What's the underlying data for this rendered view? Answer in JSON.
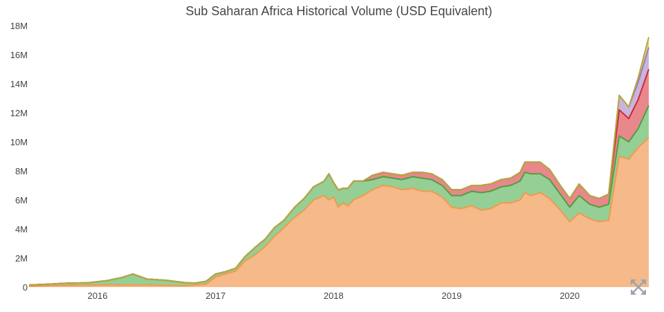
{
  "chart_data": {
    "type": "area",
    "title": "Sub Saharan Africa Historical Volume (USD Equivalent)",
    "xlabel": "",
    "ylabel": "",
    "stacked": true,
    "ylim": [
      0,
      18000000
    ],
    "xlim": [
      2015.42,
      2020.67
    ],
    "grid": false,
    "legend": "none",
    "y_tick_values": [
      0,
      2000000,
      4000000,
      6000000,
      8000000,
      10000000,
      12000000,
      14000000,
      16000000,
      18000000
    ],
    "y_tick_labels": [
      "0",
      "2M",
      "4M",
      "6M",
      "8M",
      "10M",
      "12M",
      "14M",
      "16M",
      "18M"
    ],
    "x_tick_values": [
      2016,
      2017,
      2018,
      2019,
      2020
    ],
    "x_tick_labels": [
      "2016",
      "2017",
      "2018",
      "2019",
      "2020"
    ],
    "x": [
      2015.42,
      2015.58,
      2015.75,
      2015.92,
      2016.08,
      2016.2,
      2016.3,
      2016.42,
      2016.58,
      2016.75,
      2016.83,
      2016.92,
      2017.0,
      2017.08,
      2017.17,
      2017.25,
      2017.33,
      2017.42,
      2017.5,
      2017.58,
      2017.67,
      2017.75,
      2017.83,
      2017.92,
      2017.96,
      2018.0,
      2018.04,
      2018.08,
      2018.12,
      2018.17,
      2018.25,
      2018.33,
      2018.42,
      2018.5,
      2018.58,
      2018.67,
      2018.75,
      2018.83,
      2018.92,
      2019.0,
      2019.08,
      2019.17,
      2019.25,
      2019.33,
      2019.42,
      2019.5,
      2019.58,
      2019.62,
      2019.67,
      2019.75,
      2019.83,
      2019.92,
      2020.0,
      2020.08,
      2020.17,
      2020.25,
      2020.33,
      2020.42,
      2020.5,
      2020.58,
      2020.67
    ],
    "series": [
      {
        "color": "#f5b98a",
        "line_color": "#f09a4e",
        "values": [
          50000,
          100000,
          120000,
          130000,
          150000,
          150000,
          150000,
          150000,
          120000,
          100000,
          150000,
          200000,
          700000,
          900000,
          1100000,
          1800000,
          2200000,
          2800000,
          3500000,
          4100000,
          4800000,
          5300000,
          6000000,
          6300000,
          6000000,
          6200000,
          5500000,
          5800000,
          5600000,
          6000000,
          6300000,
          6700000,
          7000000,
          6900000,
          6700000,
          6800000,
          6600000,
          6600000,
          6200000,
          5500000,
          5400000,
          5600000,
          5300000,
          5400000,
          5800000,
          5800000,
          6000000,
          6500000,
          6300000,
          6500000,
          6100000,
          5300000,
          4500000,
          5100000,
          4700000,
          4500000,
          4600000,
          9000000,
          8800000,
          9600000,
          10300000
        ]
      },
      {
        "color": "#95cf95",
        "line_color": "#4f9f3f",
        "values": [
          100000,
          100000,
          150000,
          170000,
          300000,
          500000,
          750000,
          400000,
          350000,
          200000,
          130000,
          200000,
          200000,
          150000,
          200000,
          300000,
          500000,
          500000,
          600000,
          500000,
          700000,
          800000,
          900000,
          1000000,
          1800000,
          1000000,
          1200000,
          1000000,
          1200000,
          1300000,
          1000000,
          700000,
          600000,
          600000,
          700000,
          800000,
          900000,
          800000,
          800000,
          800000,
          900000,
          1000000,
          1200000,
          1200000,
          1100000,
          1200000,
          1300000,
          1400000,
          1500000,
          1300000,
          1300000,
          1100000,
          1000000,
          1200000,
          1000000,
          1000000,
          1100000,
          1400000,
          1200000,
          1300000,
          2200000
        ]
      },
      {
        "color": "#e8888a",
        "line_color": "#cc2a36",
        "values": [
          0,
          0,
          0,
          0,
          0,
          0,
          0,
          0,
          0,
          0,
          0,
          0,
          0,
          0,
          0,
          0,
          0,
          0,
          0,
          0,
          0,
          0,
          0,
          0,
          0,
          0,
          0,
          0,
          0,
          0,
          0,
          300000,
          300000,
          300000,
          300000,
          300000,
          400000,
          400000,
          400000,
          400000,
          400000,
          400000,
          500000,
          500000,
          500000,
          500000,
          600000,
          700000,
          800000,
          800000,
          700000,
          600000,
          600000,
          800000,
          600000,
          600000,
          700000,
          1800000,
          1600000,
          2000000,
          2500000
        ]
      },
      {
        "color": "#c8b4dc",
        "line_color": "#9c7bbf",
        "values": [
          0,
          0,
          0,
          0,
          0,
          0,
          0,
          0,
          0,
          0,
          0,
          0,
          0,
          0,
          0,
          0,
          0,
          0,
          0,
          0,
          0,
          0,
          0,
          0,
          0,
          0,
          0,
          0,
          0,
          0,
          0,
          0,
          0,
          0,
          0,
          0,
          0,
          0,
          0,
          0,
          0,
          0,
          0,
          0,
          0,
          0,
          0,
          0,
          0,
          0,
          0,
          0,
          0,
          0,
          0,
          0,
          0,
          1000000,
          800000,
          1200000,
          1500000
        ]
      },
      {
        "color": "#d9d28a",
        "line_color": "#b5a93a",
        "values": [
          0,
          0,
          0,
          0,
          0,
          0,
          0,
          0,
          0,
          0,
          0,
          0,
          0,
          0,
          0,
          0,
          0,
          0,
          0,
          0,
          0,
          0,
          0,
          0,
          0,
          0,
          0,
          0,
          0,
          0,
          0,
          0,
          0,
          0,
          0,
          0,
          0,
          0,
          0,
          0,
          0,
          0,
          0,
          0,
          0,
          0,
          0,
          0,
          0,
          0,
          0,
          0,
          0,
          0,
          0,
          0,
          0,
          0,
          0,
          300000,
          700000
        ]
      }
    ]
  },
  "ui": {
    "expand_icon": "expand-arrows-icon",
    "axis_color": "#444444"
  }
}
